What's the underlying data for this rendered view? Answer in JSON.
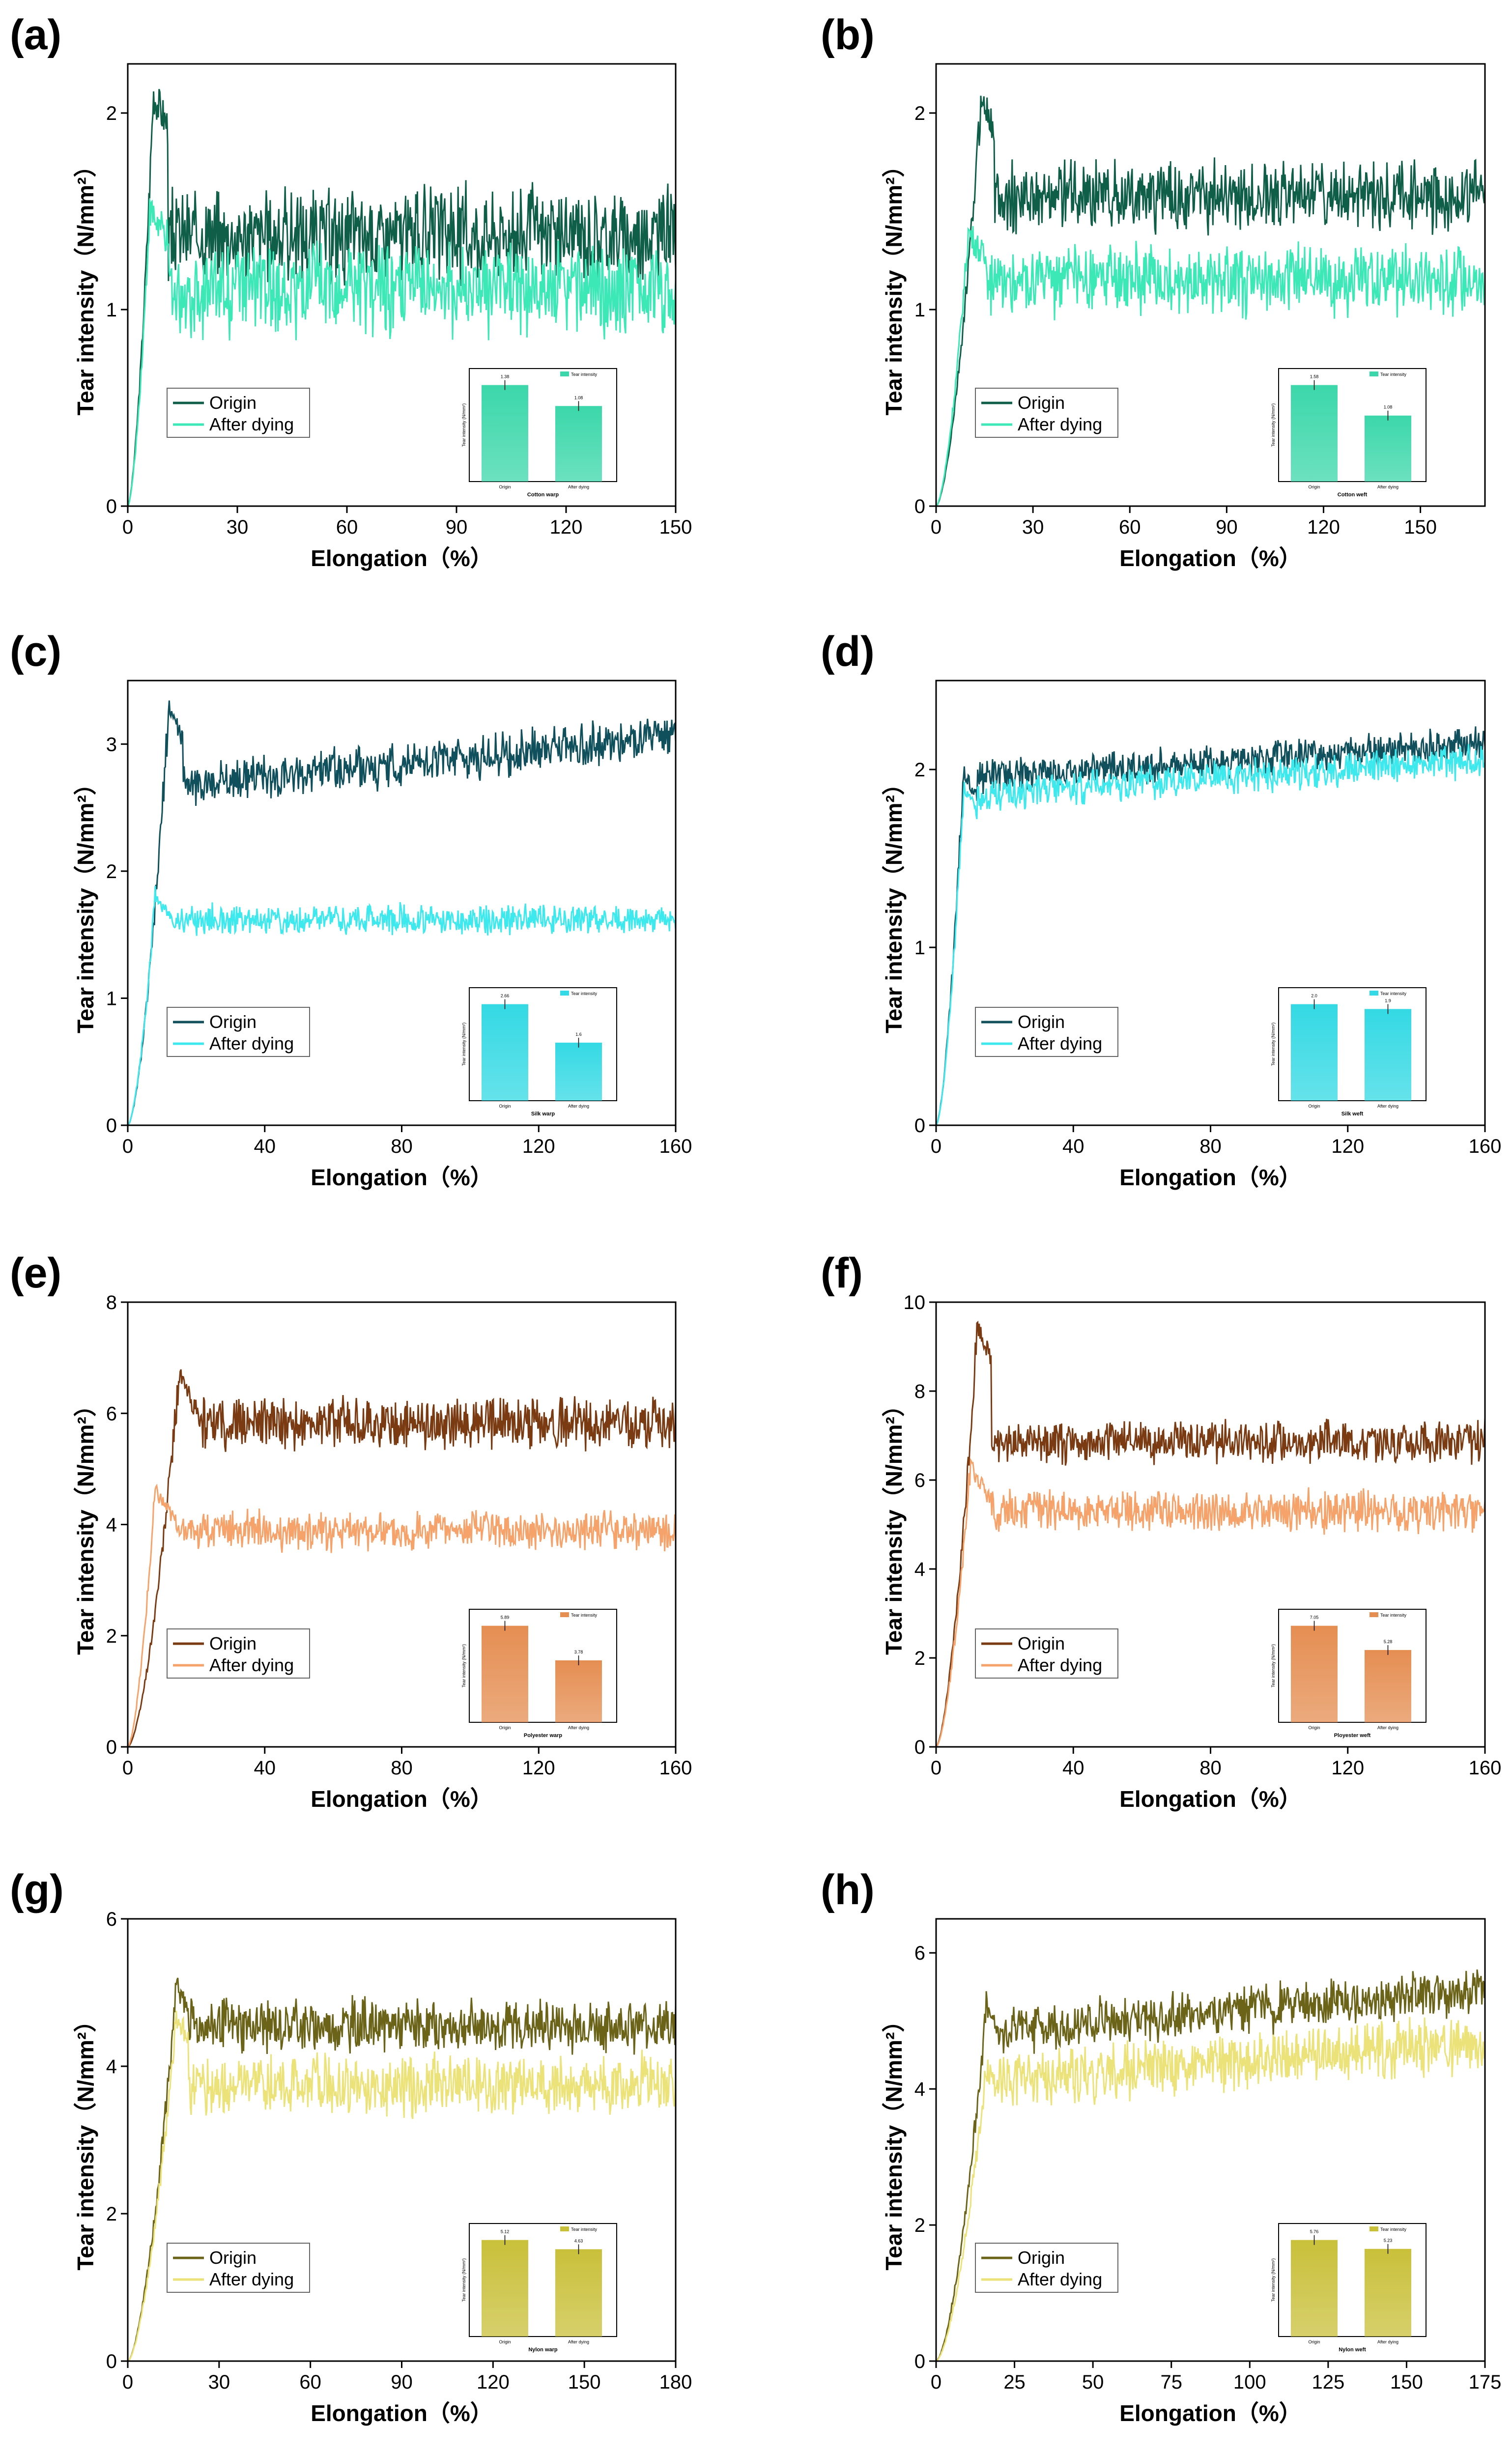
{
  "figure": {
    "xlabel": "Elongation（%）",
    "ylabel": "Tear intensity（N/mm²）",
    "legend_origin": "Origin",
    "legend_after": "After dying",
    "inset_legend": "Tear intensity",
    "inset_ylabel": "Tear intensity (N/mm²)",
    "inset_cat_origin": "Origin",
    "inset_cat_after": "After dying"
  },
  "chart_data": [
    {
      "type": "line",
      "label": "(a)",
      "xlim": [
        0,
        150
      ],
      "ylim": [
        0,
        2.25
      ],
      "xticks": [
        0,
        30,
        60,
        90,
        120,
        150
      ],
      "yticks": [
        0,
        1,
        2
      ],
      "series": [
        {
          "name": "Origin",
          "color": "#0f5e48",
          "peak": [
            7,
            2.1
          ],
          "plateau": 1.38,
          "noise": 0.2,
          "rise_end": 7
        },
        {
          "name": "After dying",
          "color": "#3de8b7",
          "peak": [
            7,
            1.5
          ],
          "plateau": 1.1,
          "noise": 0.2,
          "rise_end": 6
        }
      ],
      "inset": {
        "title": "Cotton warp",
        "values": [
          1.38,
          1.08
        ],
        "value_labels": [
          "1.38",
          "1.08"
        ],
        "color": "#3bd7aa"
      }
    },
    {
      "type": "line",
      "label": "(b)",
      "xlim": [
        0,
        170
      ],
      "ylim": [
        0,
        2.25
      ],
      "xticks": [
        0,
        30,
        60,
        90,
        120,
        150
      ],
      "yticks": [
        0,
        1,
        2
      ],
      "series": [
        {
          "name": "Origin",
          "color": "#0f5e48",
          "peak": [
            14,
            2.08
          ],
          "plateau": 1.58,
          "noise": 0.15,
          "rise_end": 14
        },
        {
          "name": "After dying",
          "color": "#3de8b7",
          "peak": [
            12,
            1.4
          ],
          "plateau": 1.15,
          "noise": 0.15,
          "rise_end": 10
        }
      ],
      "inset": {
        "title": "Cotton weft",
        "values": [
          1.58,
          1.08
        ],
        "value_labels": [
          "1.58",
          "1.08"
        ],
        "color": "#3bd7aa"
      }
    },
    {
      "type": "line",
      "label": "(c)",
      "xlim": [
        0,
        160
      ],
      "ylim": [
        0,
        3.5
      ],
      "xticks": [
        0,
        40,
        80,
        120,
        160
      ],
      "yticks": [
        0,
        1,
        2,
        3
      ],
      "series": [
        {
          "name": "Origin",
          "color": "#10505c",
          "peak": [
            12,
            3.3
          ],
          "plateau": 2.66,
          "noise": 0.15,
          "rise_end": 12,
          "trend": 0.4
        },
        {
          "name": "After dying",
          "color": "#3ee9ee",
          "peak": [
            10,
            1.8
          ],
          "plateau": 1.62,
          "noise": 0.1,
          "rise_end": 8
        }
      ],
      "inset": {
        "title": "Silk warp",
        "values": [
          2.66,
          1.6
        ],
        "value_labels": [
          "2.66",
          "1.6"
        ],
        "color": "#33d9e4"
      }
    },
    {
      "type": "line",
      "label": "(d)",
      "xlim": [
        0,
        160
      ],
      "ylim": [
        0,
        2.5
      ],
      "xticks": [
        0,
        40,
        80,
        120,
        160
      ],
      "yticks": [
        0,
        1,
        2
      ],
      "series": [
        {
          "name": "Origin",
          "color": "#10505c",
          "peak": [
            8,
            2.0
          ],
          "plateau": 1.95,
          "noise": 0.08,
          "rise_end": 8,
          "trend": 0.2
        },
        {
          "name": "After dying",
          "color": "#3ee9ee",
          "peak": [
            8,
            1.9
          ],
          "plateau": 1.85,
          "noise": 0.08,
          "rise_end": 8,
          "trend": 0.2
        }
      ],
      "inset": {
        "title": "Silk weft",
        "values": [
          2.0,
          1.9
        ],
        "value_labels": [
          "2.0",
          "1.9"
        ],
        "color": "#33d9e4"
      }
    },
    {
      "type": "line",
      "label": "(e)",
      "xlim": [
        0,
        160
      ],
      "ylim": [
        0,
        8
      ],
      "xticks": [
        0,
        40,
        80,
        120,
        160
      ],
      "yticks": [
        0,
        2,
        4,
        6,
        8
      ],
      "series": [
        {
          "name": "Origin",
          "color": "#7a3a12",
          "peak": [
            17,
            6.7
          ],
          "plateau": 5.8,
          "noise": 0.4,
          "rise_end": 15
        },
        {
          "name": "After dying",
          "color": "#f5a36b",
          "peak": [
            12,
            4.6
          ],
          "plateau": 3.9,
          "noise": 0.3,
          "rise_end": 8
        }
      ],
      "inset": {
        "title": "Polyester warp",
        "values": [
          5.89,
          3.78
        ],
        "value_labels": [
          "5.89",
          "3.78"
        ],
        "color": "#e58e52"
      }
    },
    {
      "type": "line",
      "label": "(f)",
      "xlim": [
        0,
        160
      ],
      "ylim": [
        0,
        10
      ],
      "xticks": [
        0,
        40,
        80,
        120,
        160
      ],
      "yticks": [
        0,
        2,
        4,
        6,
        8,
        10
      ],
      "series": [
        {
          "name": "Origin",
          "color": "#7a3a12",
          "peak": [
            12,
            9.5
          ],
          "plateau": 6.85,
          "noise": 0.4,
          "rise_end": 12
        },
        {
          "name": "After dying",
          "color": "#f5a36b",
          "peak": [
            12,
            6.3
          ],
          "plateau": 5.3,
          "noise": 0.4,
          "rise_end": 10
        }
      ],
      "inset": {
        "title": "Ployester weft",
        "values": [
          7.05,
          5.28
        ],
        "value_labels": [
          "7.05",
          "5.28"
        ],
        "color": "#e58e52"
      }
    },
    {
      "type": "line",
      "label": "(g)",
      "xlim": [
        0,
        180
      ],
      "ylim": [
        0,
        6
      ],
      "xticks": [
        0,
        30,
        60,
        90,
        120,
        150,
        180
      ],
      "yticks": [
        0,
        2,
        4,
        6
      ],
      "series": [
        {
          "name": "Origin",
          "color": "#6b6318",
          "peak": [
            16,
            5.1
          ],
          "plateau": 4.55,
          "noise": 0.3,
          "rise_end": 16
        },
        {
          "name": "After dying",
          "color": "#ece27a",
          "peak": [
            16,
            4.7
          ],
          "plateau": 3.75,
          "noise": 0.35,
          "rise_end": 16
        }
      ],
      "inset": {
        "title": "Nylon warp",
        "values": [
          5.12,
          4.63
        ],
        "value_labels": [
          "5.12",
          "4.63"
        ],
        "color": "#c9c03a"
      }
    },
    {
      "type": "line",
      "label": "(h)",
      "xlim": [
        0,
        175
      ],
      "ylim": [
        0,
        6.5
      ],
      "xticks": [
        0,
        25,
        50,
        75,
        100,
        125,
        150,
        175
      ],
      "yticks": [
        0,
        2,
        4,
        6
      ],
      "series": [
        {
          "name": "Origin",
          "color": "#6b6318",
          "peak": [
            16,
            5.2
          ],
          "plateau": 4.85,
          "noise": 0.3,
          "rise_end": 16,
          "trend": 0.6
        },
        {
          "name": "After dying",
          "color": "#ece27a",
          "peak": [
            16,
            4.3
          ],
          "plateau": 4.1,
          "noise": 0.35,
          "rise_end": 16,
          "trend": 0.6
        }
      ],
      "inset": {
        "title": "Nylon weft",
        "values": [
          5.76,
          5.23
        ],
        "value_labels": [
          "5.76",
          "5.23"
        ],
        "color": "#c9c03a"
      }
    }
  ]
}
